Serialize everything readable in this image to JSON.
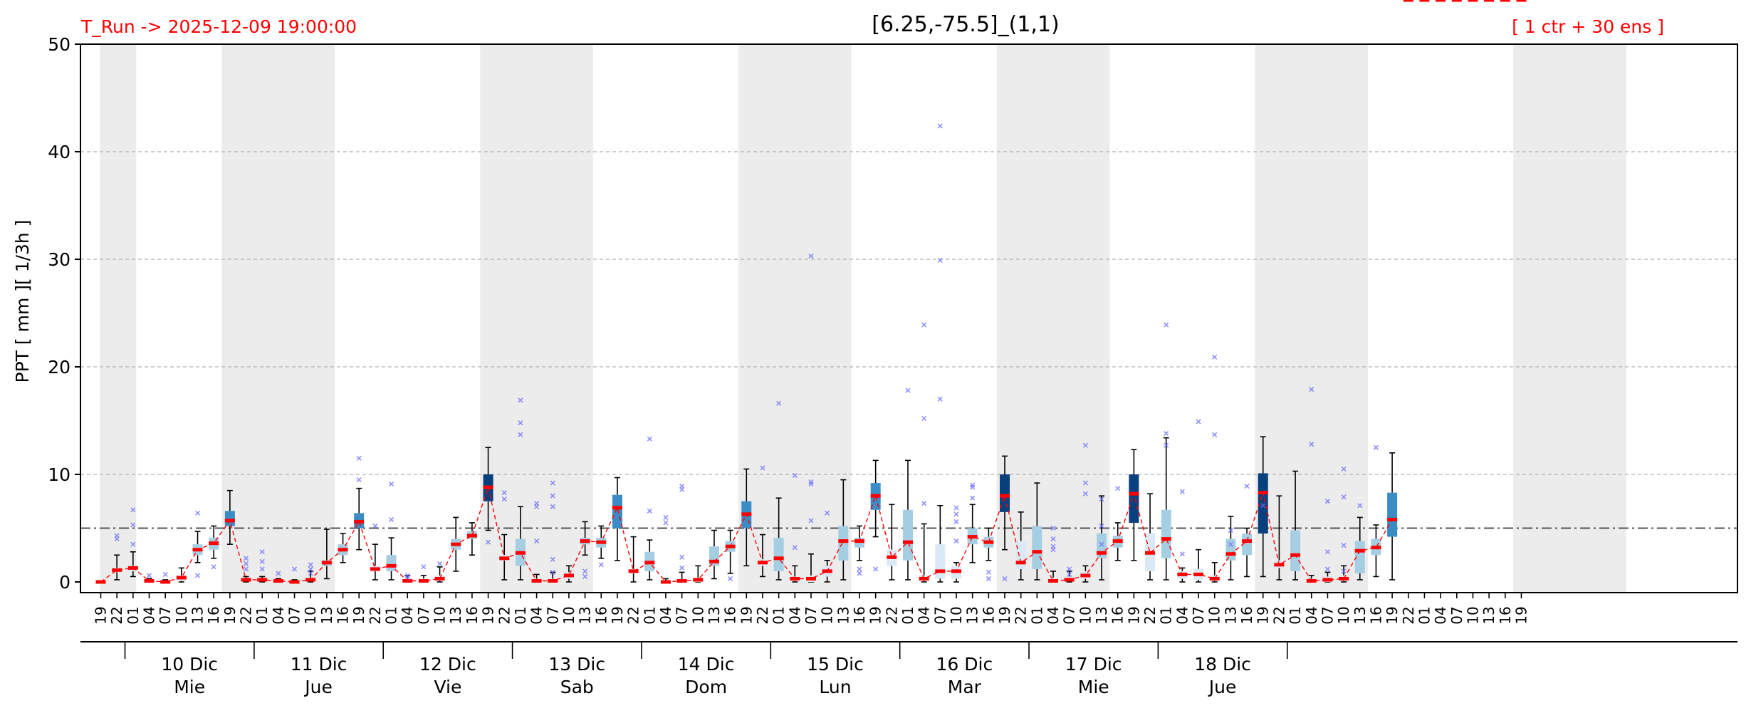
{
  "header": {
    "run_label": "T_Run -> 2025-12-09  19:00:00",
    "title": "[6.25,-75.5]_(1,1)",
    "ensemble_label": "[ 1 ctr + 30 ens ]"
  },
  "colors": {
    "red_text": "#ff0000",
    "median": "#ff0000",
    "night_band": "#ececec",
    "outlier": "#6b6bff",
    "box_light": "#dbe9f6",
    "box_lightblue": "#a6cee3",
    "box_mid": "#3a8cc4",
    "box_dark": "#08407e",
    "threshold": "#555555"
  },
  "chart_data": {
    "type": "box",
    "ylabel": "PPT  [ mm ][ 1/3h ]",
    "ylim": [
      0,
      50
    ],
    "yticks": [
      0,
      10,
      20,
      30,
      40,
      50
    ],
    "grid": "horizontal dashed",
    "threshold": 5,
    "hour_labels": [
      "19",
      "22",
      "01",
      "04",
      "07",
      "10",
      "13",
      "16",
      "19",
      "22",
      "01",
      "04",
      "07",
      "10",
      "13",
      "16",
      "19",
      "22",
      "01",
      "04",
      "07",
      "10",
      "13",
      "16",
      "19",
      "22",
      "01",
      "04",
      "07",
      "10",
      "13",
      "16",
      "19",
      "22",
      "01",
      "04",
      "07",
      "10",
      "13",
      "16",
      "19",
      "22",
      "01",
      "04",
      "07",
      "10",
      "13",
      "16",
      "19",
      "22",
      "01",
      "04",
      "07",
      "10",
      "13",
      "16",
      "19",
      "22",
      "01",
      "04",
      "07",
      "10",
      "13",
      "16",
      "19",
      "22",
      "01",
      "04",
      "07",
      "10",
      "13",
      "16",
      "19",
      "22",
      "01",
      "04",
      "07",
      "10",
      "13",
      "16",
      "19",
      "22",
      "01",
      "04",
      "07",
      "10",
      "13",
      "16",
      "19"
    ],
    "days": [
      {
        "date": "10 Dic",
        "weekday": "Mie"
      },
      {
        "date": "11 Dic",
        "weekday": "Jue"
      },
      {
        "date": "12 Dic",
        "weekday": "Vie"
      },
      {
        "date": "13 Dic",
        "weekday": "Sab"
      },
      {
        "date": "14 Dic",
        "weekday": "Dom"
      },
      {
        "date": "15 Dic",
        "weekday": "Lun"
      },
      {
        "date": "16 Dic",
        "weekday": "Mar"
      },
      {
        "date": "17 Dic",
        "weekday": "Mie"
      },
      {
        "date": "18 Dic",
        "weekday": "Jue"
      }
    ],
    "medians": [
      0.0,
      1.1,
      1.3,
      0.1,
      0.0,
      0.4,
      3.0,
      3.6,
      5.7,
      0.2,
      0.2,
      0.1,
      0.0,
      0.2,
      1.8,
      3.0,
      5.6,
      1.2,
      1.5,
      0.1,
      0.1,
      0.3,
      3.5,
      4.3,
      8.8,
      2.2,
      2.7,
      0.1,
      0.1,
      0.6,
      3.8,
      3.7,
      6.9,
      1.0,
      1.8,
      0.0,
      0.1,
      0.2,
      1.9,
      3.3,
      6.3,
      1.8,
      2.2,
      0.3,
      0.3,
      1.0,
      3.8,
      3.8,
      8.0,
      2.3,
      3.7,
      0.3,
      1.0,
      1.0,
      4.2,
      3.7,
      8.0,
      1.8,
      2.8,
      0.1,
      0.2,
      0.6,
      2.7,
      3.8,
      8.2,
      2.7,
      4.0,
      0.7,
      0.7,
      0.3,
      2.6,
      3.8,
      8.3,
      1.6,
      2.5,
      0.1,
      0.2,
      0.3,
      2.9,
      3.2,
      5.8
    ],
    "q1": [
      0.0,
      0.9,
      1.0,
      0.0,
      0.0,
      0.1,
      2.5,
      3.0,
      5.2,
      0.1,
      0.1,
      0.0,
      0.0,
      0.1,
      1.5,
      2.5,
      5.0,
      1.0,
      1.0,
      0.0,
      0.0,
      0.1,
      3.0,
      4.0,
      7.5,
      2.0,
      1.5,
      0.0,
      0.0,
      0.3,
      3.5,
      3.2,
      5.0,
      0.8,
      1.0,
      0.0,
      0.0,
      0.0,
      1.5,
      2.8,
      5.0,
      1.5,
      1.0,
      0.1,
      0.0,
      0.5,
      2.0,
      3.2,
      6.7,
      1.5,
      2.0,
      0.1,
      0.3,
      0.3,
      3.5,
      3.2,
      6.5,
      1.2,
      1.2,
      0.0,
      0.1,
      0.3,
      2.2,
      3.2,
      5.5,
      1.0,
      2.2,
      0.3,
      0.2,
      0.1,
      2.0,
      2.5,
      4.5,
      1.3,
      1.0,
      0.0,
      0.0,
      0.1,
      0.8,
      2.5,
      4.2
    ],
    "q3": [
      0.0,
      1.3,
      1.5,
      0.2,
      0.1,
      0.6,
      3.5,
      4.1,
      6.6,
      0.3,
      0.3,
      0.2,
      0.1,
      0.4,
      2.0,
      3.5,
      6.4,
      1.5,
      2.5,
      0.3,
      0.3,
      0.6,
      4.0,
      4.7,
      10.0,
      2.5,
      4.0,
      0.3,
      0.3,
      0.9,
      4.1,
      4.1,
      8.1,
      1.2,
      2.8,
      0.1,
      0.2,
      0.4,
      3.3,
      3.8,
      7.5,
      2.1,
      4.1,
      0.5,
      0.6,
      1.5,
      5.2,
      4.1,
      9.2,
      3.0,
      6.7,
      0.6,
      3.5,
      1.5,
      5.0,
      4.2,
      10.0,
      3.8,
      5.2,
      0.4,
      0.5,
      1.0,
      4.5,
      4.3,
      10.0,
      4.5,
      6.7,
      1.0,
      1.2,
      0.6,
      4.0,
      4.5,
      10.1,
      2.0,
      4.8,
      0.3,
      0.5,
      0.6,
      3.8,
      4.0,
      8.3
    ],
    "whisker_low": [
      0.0,
      0.2,
      0.5,
      0.0,
      0.0,
      0.0,
      1.8,
      2.2,
      3.5,
      0.0,
      0.0,
      0.0,
      0.0,
      0.0,
      0.3,
      1.8,
      3.0,
      0.2,
      0.2,
      0.0,
      0.0,
      0.0,
      1.0,
      2.5,
      4.8,
      0.2,
      0.2,
      0.0,
      0.0,
      0.0,
      2.5,
      2.2,
      2.0,
      0.0,
      0.2,
      0.0,
      0.0,
      0.0,
      0.3,
      0.8,
      1.5,
      0.5,
      0.2,
      0.0,
      0.0,
      0.0,
      0.2,
      2.0,
      4.2,
      0.2,
      0.2,
      0.0,
      0.0,
      0.0,
      1.8,
      2.0,
      3.0,
      0.2,
      0.2,
      0.0,
      0.0,
      0.0,
      0.2,
      2.0,
      2.0,
      0.2,
      0.2,
      0.0,
      0.0,
      0.0,
      0.2,
      0.5,
      0.5,
      0.2,
      0.2,
      0.0,
      0.0,
      0.0,
      0.2,
      0.5,
      0.2
    ],
    "whisker_high": [
      0.0,
      2.5,
      2.8,
      0.3,
      0.2,
      1.3,
      4.7,
      5.2,
      8.5,
      0.5,
      0.5,
      0.3,
      0.2,
      1.0,
      4.9,
      4.5,
      8.7,
      3.5,
      4.1,
      0.6,
      0.6,
      1.4,
      6.0,
      5.5,
      12.5,
      4.4,
      7.0,
      0.7,
      0.9,
      1.5,
      5.6,
      5.2,
      9.7,
      4.2,
      3.9,
      0.3,
      0.9,
      1.5,
      4.8,
      4.8,
      10.5,
      4.4,
      7.8,
      1.5,
      2.6,
      2.0,
      9.5,
      5.2,
      11.3,
      7.2,
      11.3,
      5.4,
      7.1,
      1.8,
      7.2,
      5.0,
      11.7,
      6.5,
      9.2,
      1.0,
      1.0,
      1.5,
      8.0,
      5.5,
      12.3,
      8.2,
      13.4,
      1.3,
      3.0,
      1.8,
      6.1,
      5.0,
      13.5,
      8.0,
      10.3,
      0.6,
      0.9,
      1.5,
      6.0,
      5.3,
      12.0
    ],
    "outliers": [
      [],
      [
        4.0,
        4.3
      ],
      [
        6.7,
        5.3,
        3.5
      ],
      [
        0.6
      ],
      [
        0.7
      ],
      [],
      [
        6.4,
        0.6
      ],
      [
        1.4
      ],
      [],
      [
        2.2,
        1.7,
        1.2
      ],
      [
        2.8,
        1.9,
        1.2
      ],
      [
        0.8
      ],
      [
        1.2
      ],
      [
        1.6,
        1.2,
        0.8
      ],
      [],
      [],
      [
        11.5,
        9.5
      ],
      [
        5.2
      ],
      [
        9.1,
        5.8
      ],
      [
        0.6,
        0.4
      ],
      [
        1.4
      ],
      [
        1.7
      ],
      [],
      [],
      [
        3.7
      ],
      [
        8.3,
        7.7
      ],
      [
        16.9,
        14.8,
        13.7
      ],
      [
        7.3,
        7.0,
        3.8
      ],
      [
        9.2,
        8.0,
        7.0,
        2.1,
        0.9
      ],
      [],
      [
        1.0,
        0.5
      ],
      [
        1.6
      ],
      [],
      [],
      [
        13.3,
        6.6
      ],
      [
        6.0,
        5.5
      ],
      [
        8.9,
        8.6,
        2.3,
        1.3
      ],
      [],
      [],
      [
        0.3
      ],
      [],
      [
        10.6
      ],
      [
        16.6
      ],
      [
        9.9,
        3.2
      ],
      [
        30.3,
        9.3,
        9.1,
        5.7
      ],
      [
        6.4
      ],
      [],
      [
        1.2,
        0.8
      ],
      [
        1.2
      ],
      [],
      [
        17.8
      ],
      [
        23.9,
        15.2,
        7.3
      ],
      [
        42.4,
        29.9,
        17.0
      ],
      [
        6.9,
        6.3,
        5.6,
        3.8
      ],
      [
        9.0,
        8.8,
        7.8
      ],
      [
        0.9,
        0.3
      ],
      [
        0.3
      ],
      [],
      [],
      [
        5.0,
        4.0,
        3.3,
        3.0
      ],
      [
        1.2,
        0.7
      ],
      [
        12.7,
        9.2,
        8.2
      ],
      [
        7.7,
        5.2,
        3.5
      ],
      [
        8.7
      ],
      [],
      [],
      [
        23.9,
        13.8,
        12.7
      ],
      [
        8.4,
        2.6
      ],
      [
        14.9
      ],
      [
        20.9,
        13.7
      ],
      [
        4.8,
        3.5
      ],
      [
        8.9
      ],
      [
        7.1
      ],
      [],
      [],
      [
        17.9,
        12.8
      ],
      [
        7.5,
        2.8,
        1.2
      ],
      [
        10.5,
        7.9,
        3.4,
        1.0
      ],
      [
        7.1
      ],
      [
        12.5
      ],
      [],
      []
    ],
    "intensity": [
      0,
      0,
      0,
      0,
      0,
      0,
      1,
      1,
      2,
      0,
      0,
      0,
      0,
      0,
      1,
      1,
      2,
      0,
      1,
      0,
      0,
      0,
      1,
      1,
      3,
      0,
      1,
      0,
      0,
      0,
      1,
      1,
      2,
      0,
      1,
      0,
      0,
      0,
      1,
      1,
      2,
      0,
      1,
      0,
      0,
      0,
      1,
      1,
      2,
      0,
      1,
      0,
      0,
      0,
      1,
      1,
      3,
      0,
      1,
      0,
      0,
      0,
      1,
      1,
      3,
      0,
      1,
      0,
      0,
      0,
      1,
      1,
      3,
      0,
      1,
      0,
      0,
      0,
      1,
      1,
      2
    ],
    "box_intensity_legend": "0=lightest,3=darkest"
  }
}
